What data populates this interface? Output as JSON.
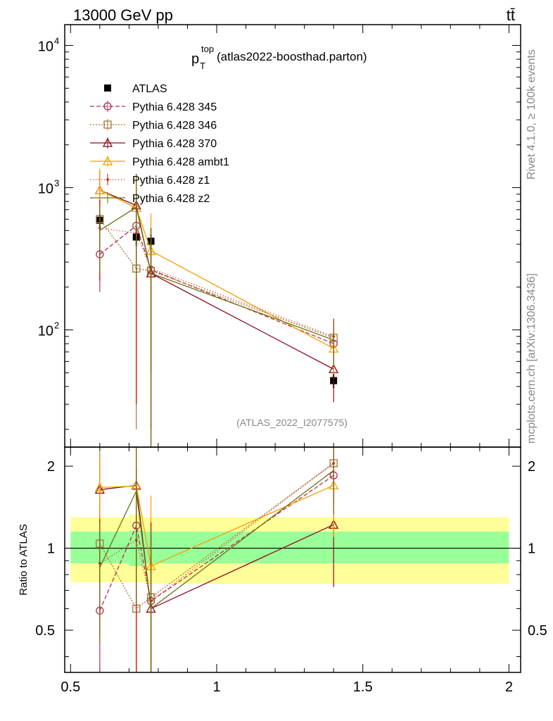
{
  "header": {
    "left": "13000 GeV pp",
    "right": "tt̄",
    "side_top": "Rivet 4.1.0, ≥ 100k events",
    "side_bottom": "mcplots.cern.ch [arXiv:1306.3436]"
  },
  "plot_title": {
    "main": "p",
    "sub": "T",
    "sup": "top",
    "rest": " (atlas2022-boosthad.parton)"
  },
  "watermark": "(ATLAS_2022_I2077575)",
  "colors": {
    "ATLAS": "#000000",
    "Pythia 6.428 345": "#b03050",
    "Pythia 6.428 346": "#a07838",
    "Pythia 6.428 370": "#8b0a1e",
    "Pythia 6.428 ambt1": "#f0a000",
    "Pythia 6.428 z1": "#cc1000",
    "Pythia 6.428 z2": "#6b7010",
    "band_inner": "#99ff99",
    "band_outer": "#ffff99"
  },
  "chart_data": [
    {
      "type": "scatter",
      "name": "main",
      "yscale": "log",
      "xlim": [
        0.48,
        2.04
      ],
      "ylim": [
        15,
        14000
      ],
      "ytick_labels": [
        "10",
        "10",
        "10"
      ],
      "ytick_exponents": [
        "2",
        "3",
        "4"
      ],
      "legend_position": "top-left",
      "series": [
        {
          "name": "ATLAS",
          "marker": "filled-square",
          "dash": "",
          "x": [
            0.6,
            0.725,
            0.775,
            1.4
          ],
          "y": [
            590,
            450,
            420,
            44
          ],
          "err": [
            [
              60,
              60
            ],
            [
              60,
              60
            ],
            [
              50,
              50
            ],
            [
              5,
              5
            ]
          ]
        },
        {
          "name": "Pythia 6.428 345",
          "marker": "circle",
          "dash": "6,3",
          "x": [
            0.6,
            0.725,
            0.775,
            1.4
          ],
          "y": [
            340,
            540,
            265,
            80
          ],
          "err": [
            [
              155,
              155
            ],
            [
              200,
              200
            ],
            [
              250,
              250
            ],
            [
              25,
              25
            ]
          ]
        },
        {
          "name": "Pythia 6.428 346",
          "marker": "square",
          "dash": "2,2",
          "x": [
            0.6,
            0.725,
            0.775,
            1.4
          ],
          "y": [
            600,
            270,
            260,
            88
          ],
          "err": [
            [
              220,
              220
            ],
            [
              250,
              250
            ],
            [
              250,
              250
            ],
            [
              30,
              30
            ]
          ]
        },
        {
          "name": "Pythia 6.428 370",
          "marker": "triangle",
          "dash": "",
          "x": [
            0.6,
            0.725,
            0.775,
            1.4
          ],
          "y": [
            960,
            750,
            250,
            53
          ],
          "err": [
            [
              350,
              350
            ],
            [
              500,
              500
            ],
            [
              200,
              200
            ],
            [
              22,
              22
            ]
          ]
        },
        {
          "name": "Pythia 6.428 ambt1",
          "marker": "triangle",
          "dash": "",
          "x": [
            0.6,
            0.725,
            0.775,
            1.4
          ],
          "y": [
            960,
            720,
            360,
            74
          ],
          "err": [
            [
              400,
              400
            ],
            [
              500,
              500
            ],
            [
              300,
              300
            ],
            [
              25,
              25
            ]
          ]
        },
        {
          "name": "Pythia 6.428 z1",
          "marker": "dot",
          "dash": "1,3",
          "x": [
            0.6,
            0.725,
            0.775,
            1.4
          ],
          "y": [
            520,
            480,
            270,
            90
          ],
          "err": [
            [
              300,
              300
            ],
            [
              450,
              450
            ],
            [
              250,
              250
            ],
            [
              30,
              30
            ]
          ]
        },
        {
          "name": "Pythia 6.428 z2",
          "marker": "none",
          "dash": "",
          "x": [
            0.6,
            0.725,
            0.775,
            1.4
          ],
          "y": [
            500,
            730,
            250,
            85
          ],
          "err": [
            [
              250,
              250
            ],
            [
              500,
              500
            ],
            [
              250,
              250
            ],
            [
              30,
              30
            ]
          ]
        }
      ]
    },
    {
      "type": "scatter",
      "name": "ratio",
      "ylabel": "Ratio to ATLAS",
      "xlim": [
        0.48,
        2.04
      ],
      "ylim": [
        0.35,
        2.35
      ],
      "yticks": [
        0.5,
        1,
        2
      ],
      "ytick_labels": [
        "0.5",
        "1",
        "2"
      ],
      "xticks": [
        0.5,
        1,
        1.5,
        2
      ],
      "xtick_labels": [
        "0.5",
        "1",
        "1.5",
        "2"
      ],
      "bands": [
        {
          "x0": 0.5,
          "x1": 0.7,
          "inner": [
            0.88,
            1.15
          ],
          "outer": [
            0.75,
            1.3
          ]
        },
        {
          "x0": 0.7,
          "x1": 0.75,
          "inner": [
            0.86,
            1.16
          ],
          "outer": [
            0.75,
            1.33
          ]
        },
        {
          "x0": 0.75,
          "x1": 2.0,
          "inner": [
            0.88,
            1.15
          ],
          "outer": [
            0.74,
            1.3
          ]
        }
      ],
      "series": [
        {
          "name": "Pythia 6.428 345",
          "x": [
            0.6,
            0.725,
            0.775,
            1.4
          ],
          "y": [
            0.59,
            1.21,
            0.64,
            1.85
          ],
          "err": [
            [
              0.25,
              0.25
            ],
            [
              0.45,
              0.45
            ],
            [
              0.6,
              0.6
            ],
            [
              0.5,
              0.5
            ]
          ]
        },
        {
          "name": "Pythia 6.428 346",
          "x": [
            0.6,
            0.725,
            0.775,
            1.4
          ],
          "y": [
            1.04,
            0.6,
            0.66,
            2.05
          ],
          "err": [
            [
              0.4,
              0.4
            ],
            [
              0.55,
              0.55
            ],
            [
              0.6,
              0.6
            ],
            [
              0.6,
              0.6
            ]
          ]
        },
        {
          "name": "Pythia 6.428 370",
          "x": [
            0.6,
            0.725,
            0.775,
            1.4
          ],
          "y": [
            1.64,
            1.7,
            0.6,
            1.22
          ],
          "err": [
            [
              0.6,
              0.6
            ],
            [
              1.0,
              1.0
            ],
            [
              0.5,
              0.5
            ],
            [
              0.5,
              0.5
            ]
          ]
        },
        {
          "name": "Pythia 6.428 ambt1",
          "x": [
            0.6,
            0.725,
            0.775,
            1.4
          ],
          "y": [
            1.67,
            1.69,
            0.86,
            1.7
          ],
          "err": [
            [
              0.6,
              0.6
            ],
            [
              1.0,
              1.0
            ],
            [
              0.7,
              0.7
            ],
            [
              0.6,
              0.6
            ]
          ]
        },
        {
          "name": "Pythia 6.428 z1",
          "x": [
            0.6,
            0.725,
            0.775,
            1.4
          ],
          "y": [
            0.88,
            1.07,
            0.64,
            2.05
          ],
          "err": [
            [
              0.4,
              0.4
            ],
            [
              0.9,
              0.9
            ],
            [
              0.6,
              0.6
            ],
            [
              0.6,
              0.6
            ]
          ]
        },
        {
          "name": "Pythia 6.428 z2",
          "x": [
            0.6,
            0.725,
            0.775,
            1.4
          ],
          "y": [
            0.85,
            1.62,
            0.6,
            1.93
          ],
          "err": [
            [
              0.4,
              0.4
            ],
            [
              1.0,
              1.0
            ],
            [
              0.6,
              0.6
            ],
            [
              0.6,
              0.6
            ]
          ]
        }
      ]
    }
  ]
}
